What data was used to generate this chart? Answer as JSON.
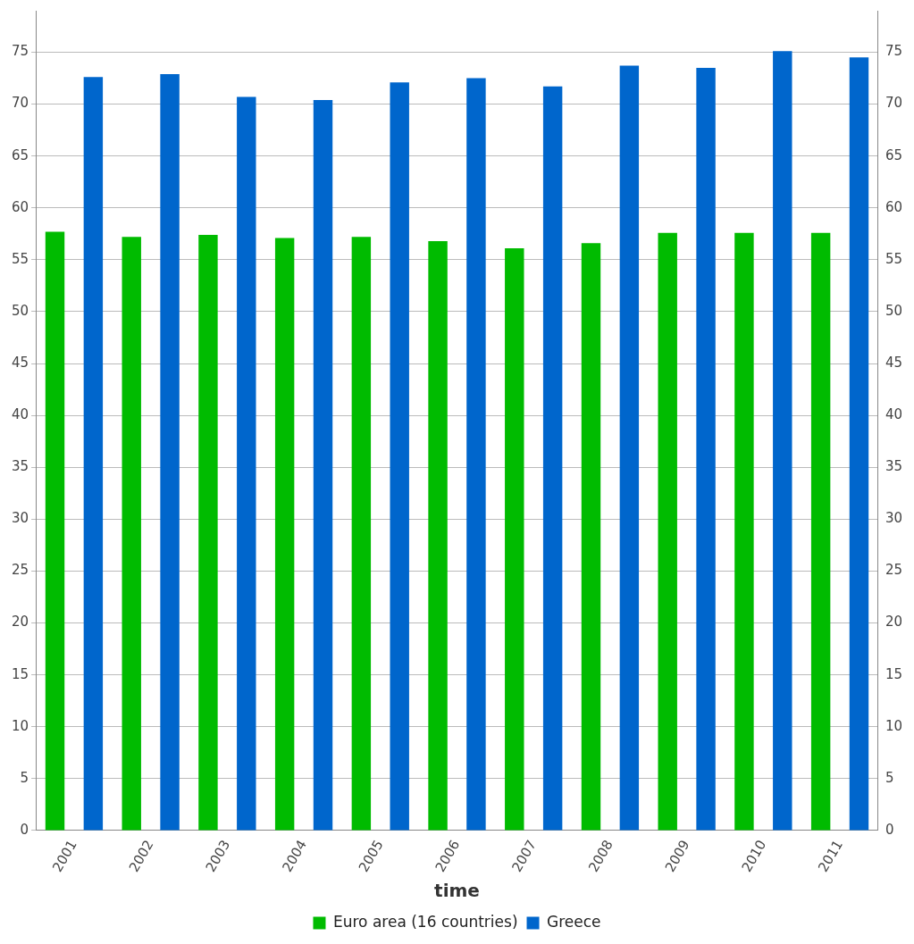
{
  "chart_data": {
    "type": "bar",
    "xlabel": "time",
    "categories": [
      "2001",
      "2002",
      "2003",
      "2004",
      "2005",
      "2006",
      "2007",
      "2008",
      "2009",
      "2010",
      "2011"
    ],
    "series": [
      {
        "name": "Euro area (16 countries)",
        "color": "#00bb00",
        "values": [
          57.7,
          57.2,
          57.4,
          57.1,
          57.2,
          56.8,
          56.1,
          56.6,
          57.6,
          57.6,
          57.6
        ]
      },
      {
        "name": "Greece",
        "color": "#0066cc",
        "values": [
          72.6,
          72.9,
          70.7,
          70.4,
          72.1,
          72.5,
          71.7,
          73.7,
          73.5,
          75.1,
          74.5
        ]
      }
    ],
    "ylim": [
      0,
      79
    ],
    "yticks": [
      0,
      5,
      10,
      15,
      20,
      25,
      30,
      35,
      40,
      45,
      50,
      55,
      60,
      65,
      70,
      75
    ],
    "y2lim": [
      0,
      79
    ],
    "y2ticks": [
      0,
      5,
      10,
      15,
      20,
      25,
      30,
      35,
      40,
      45,
      50,
      55,
      60,
      65,
      70,
      75
    ],
    "grid": "y",
    "legend": "bottom"
  }
}
